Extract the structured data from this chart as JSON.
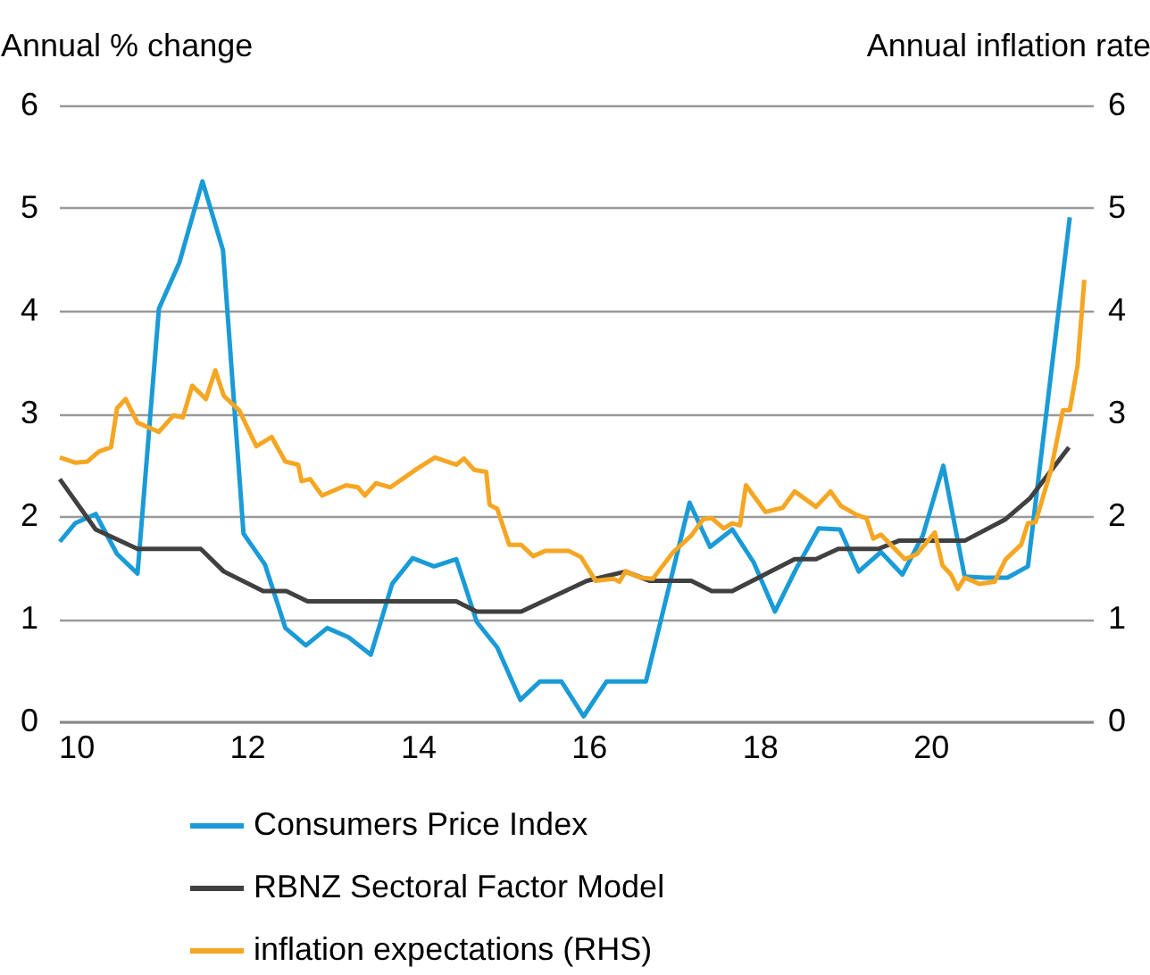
{
  "chart_data": {
    "type": "line",
    "ylabel": "Annual % change",
    "y2label": "Annual inflation rate",
    "xlim": [
      9.8,
      21.9
    ],
    "xticks": [
      10,
      12,
      14,
      16,
      18,
      20
    ],
    "ylim": [
      0,
      6
    ],
    "yticks": [
      0,
      1,
      2,
      3,
      4,
      5,
      6
    ],
    "y2lim": [
      0,
      6
    ],
    "y2ticks": [
      0,
      1,
      2,
      3,
      4,
      5,
      6
    ],
    "grid": "y",
    "legend": "bottom",
    "series": [
      {
        "name": "Consumers Price Index",
        "color": "#1a9bd7",
        "x": [
          9.81,
          9.99,
          10.23,
          10.48,
          10.72,
          10.97,
          11.21,
          11.48,
          11.72,
          11.96,
          12.21,
          12.45,
          12.69,
          12.94,
          13.19,
          13.45,
          13.7,
          13.94,
          14.19,
          14.45,
          14.69,
          14.93,
          15.2,
          15.43,
          15.68,
          15.94,
          16.21,
          16.45,
          16.67,
          17.18,
          17.42,
          17.68,
          17.93,
          18.18,
          18.43,
          18.69,
          18.94,
          19.16,
          19.42,
          19.67,
          19.91,
          20.15,
          20.4,
          20.64,
          20.9,
          21.14,
          21.63
        ],
        "values": [
          1.75,
          1.93,
          2.02,
          1.63,
          1.44,
          4.02,
          4.47,
          5.26,
          4.59,
          1.83,
          1.53,
          0.91,
          0.74,
          0.91,
          0.82,
          0.65,
          1.34,
          1.59,
          1.51,
          1.58,
          0.97,
          0.72,
          0.21,
          0.39,
          0.39,
          0.05,
          0.39,
          0.39,
          0.39,
          2.13,
          1.7,
          1.87,
          1.55,
          1.07,
          1.49,
          1.88,
          1.87,
          1.46,
          1.65,
          1.43,
          1.81,
          2.49,
          1.41,
          1.4,
          1.4,
          1.51,
          4.91
        ]
      },
      {
        "name": "RBNZ Sectoral Factor Model",
        "color": "#404040",
        "x": [
          9.81,
          10.23,
          10.72,
          11.46,
          11.73,
          12.19,
          12.46,
          12.71,
          14.45,
          14.69,
          15.21,
          15.98,
          16.43,
          16.71,
          17.2,
          17.44,
          17.68,
          18.41,
          18.66,
          18.92,
          19.39,
          19.63,
          20.4,
          20.88,
          21.16,
          21.62
        ],
        "values": [
          2.36,
          1.87,
          1.68,
          1.68,
          1.46,
          1.27,
          1.27,
          1.17,
          1.17,
          1.07,
          1.07,
          1.37,
          1.46,
          1.37,
          1.37,
          1.27,
          1.27,
          1.58,
          1.58,
          1.68,
          1.68,
          1.76,
          1.76,
          1.97,
          2.17,
          2.67
        ]
      },
      {
        "name": "inflation expectations (RHS)",
        "color": "#f5a623",
        "axis": "y2",
        "x": [
          9.81,
          9.99,
          10.13,
          10.27,
          10.41,
          10.48,
          10.58,
          10.72,
          10.97,
          11.14,
          11.25,
          11.36,
          11.52,
          11.63,
          11.73,
          11.91,
          12.11,
          12.29,
          12.45,
          12.6,
          12.64,
          12.74,
          12.88,
          13.16,
          13.3,
          13.38,
          13.51,
          13.68,
          13.99,
          14.2,
          14.45,
          14.54,
          14.66,
          14.8,
          14.84,
          14.93,
          15.07,
          15.21,
          15.35,
          15.49,
          15.77,
          15.91,
          16.08,
          16.29,
          16.36,
          16.43,
          16.61,
          16.75,
          16.99,
          17.2,
          17.34,
          17.44,
          17.58,
          17.68,
          17.77,
          17.84,
          18.07,
          18.27,
          18.41,
          18.66,
          18.83,
          18.95,
          19.14,
          19.25,
          19.33,
          19.42,
          19.7,
          19.84,
          20.05,
          20.14,
          20.24,
          20.32,
          20.4,
          20.57,
          20.75,
          20.88,
          21.06,
          21.14,
          21.23,
          21.41,
          21.55,
          21.63,
          21.72,
          21.8
        ],
        "values": [
          2.57,
          2.52,
          2.53,
          2.63,
          2.67,
          3.05,
          3.14,
          2.91,
          2.82,
          2.98,
          2.96,
          3.27,
          3.14,
          3.42,
          3.17,
          3.03,
          2.68,
          2.77,
          2.53,
          2.5,
          2.34,
          2.36,
          2.2,
          2.3,
          2.28,
          2.2,
          2.32,
          2.28,
          2.46,
          2.57,
          2.5,
          2.56,
          2.45,
          2.43,
          2.11,
          2.07,
          1.72,
          1.72,
          1.61,
          1.66,
          1.66,
          1.6,
          1.37,
          1.39,
          1.36,
          1.46,
          1.4,
          1.39,
          1.65,
          1.81,
          1.97,
          1.98,
          1.88,
          1.93,
          1.91,
          2.3,
          2.04,
          2.08,
          2.24,
          2.09,
          2.24,
          2.1,
          2.01,
          1.98,
          1.78,
          1.82,
          1.58,
          1.63,
          1.84,
          1.52,
          1.43,
          1.29,
          1.4,
          1.34,
          1.36,
          1.58,
          1.72,
          1.93,
          1.94,
          2.45,
          3.03,
          3.03,
          3.46,
          4.3
        ]
      }
    ]
  }
}
